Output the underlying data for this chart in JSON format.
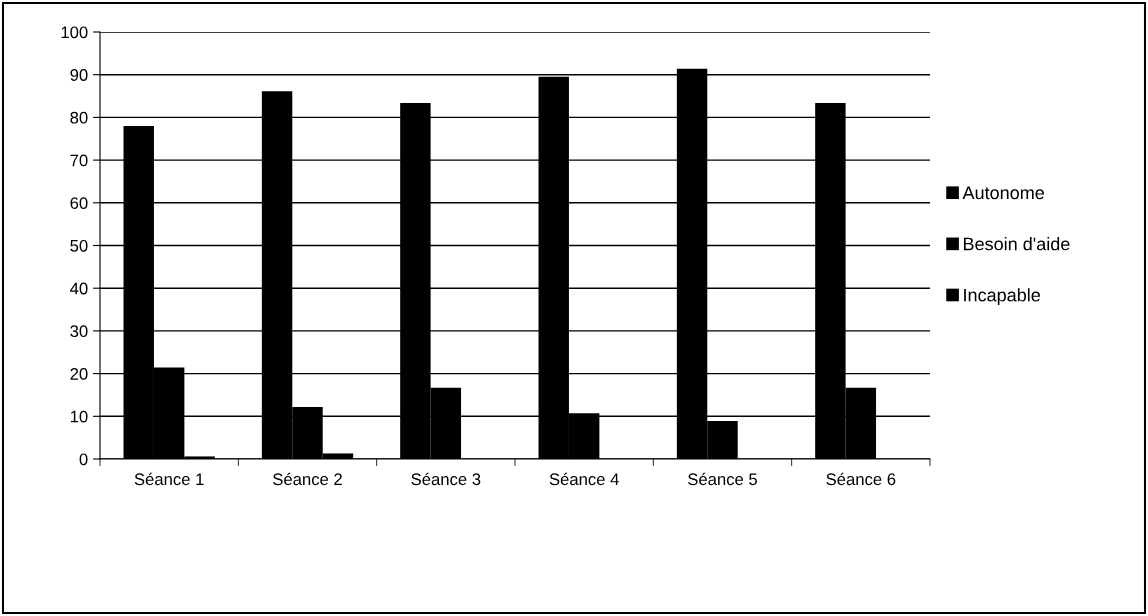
{
  "chart_data": {
    "type": "bar",
    "categories": [
      "Séance 1",
      "Séance 2",
      "Séance 3",
      "Séance 4",
      "Séance 5",
      "Séance 6"
    ],
    "series": [
      {
        "name": "Autonome",
        "color": "#000000",
        "values": [
          78.0,
          86.1,
          83.4,
          89.5,
          91.4,
          83.4
        ]
      },
      {
        "name": "Besoin d'aide",
        "color": "#000000",
        "values": [
          21.4,
          12.2,
          16.7,
          10.7,
          8.9,
          16.7
        ]
      },
      {
        "name": "Incapable",
        "color": "#000000",
        "values": [
          0.6,
          1.3,
          0,
          0,
          0,
          0
        ]
      }
    ],
    "ylim": [
      0,
      100
    ],
    "yticks": [
      0,
      10,
      20,
      30,
      40,
      50,
      60,
      70,
      80,
      90,
      100
    ],
    "grid": "y",
    "legend": "right"
  }
}
